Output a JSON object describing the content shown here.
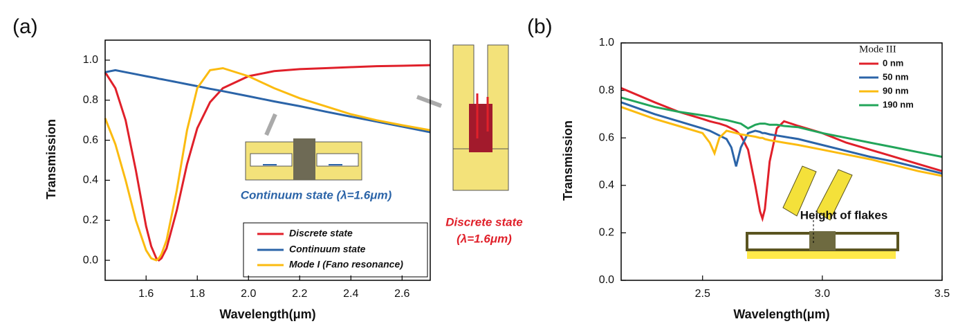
{
  "chart_data": [
    {
      "type": "line",
      "panel_label": "(a)",
      "x_label": "Wavelength(μm)",
      "y_label": "Transmission",
      "xlim": [
        1.44,
        2.71
      ],
      "ylim": [
        -0.1,
        1.1
      ],
      "xticks": [
        1.6,
        1.8,
        {
          "value": 2,
          "label": "2.0"
        },
        2.2,
        2.4,
        2.6
      ],
      "yticks": [
        {
          "value": 0,
          "label": "0.0"
        },
        0.2,
        0.4,
        0.6,
        0.8,
        {
          "value": 1,
          "label": "1.0"
        }
      ],
      "legend": "lower right",
      "x": [
        1.44,
        1.48,
        1.52,
        1.56,
        1.6,
        1.62,
        1.64,
        1.65,
        1.66,
        1.68,
        1.72,
        1.76,
        1.8,
        1.85,
        1.9,
        2.0,
        2.1,
        2.2,
        2.3,
        2.4,
        2.5,
        2.6,
        2.71
      ],
      "series": [
        {
          "name": "Discrete state",
          "color": "#e0202a",
          "values": [
            0.94,
            0.86,
            0.7,
            0.45,
            0.17,
            0.07,
            0.01,
            0.0,
            0.01,
            0.06,
            0.25,
            0.48,
            0.66,
            0.79,
            0.86,
            0.92,
            0.945,
            0.955,
            0.96,
            0.965,
            0.97,
            0.972,
            0.975
          ]
        },
        {
          "name": "Continuum state",
          "color": "#2b64a8",
          "values": [
            0.94,
            0.95,
            0.94,
            0.93,
            0.92,
            0.915,
            0.91,
            0.907,
            0.905,
            0.9,
            0.89,
            0.88,
            0.87,
            0.857,
            0.845,
            0.82,
            0.794,
            0.77,
            0.743,
            0.718,
            0.693,
            0.668,
            0.64
          ]
        },
        {
          "name": "Mode I (Fano resonance)",
          "color": "#fbbb10",
          "values": [
            0.71,
            0.58,
            0.4,
            0.2,
            0.05,
            0.01,
            0.0,
            0.01,
            0.03,
            0.1,
            0.35,
            0.65,
            0.86,
            0.95,
            0.96,
            0.92,
            0.86,
            0.81,
            0.77,
            0.73,
            0.7,
            0.675,
            0.65
          ]
        }
      ],
      "annotations": [
        {
          "text": "Continuum state (λ=1.6μm)",
          "color": "#2b64a8"
        },
        {
          "text": "Discrete state",
          "color": "#e0202a"
        },
        {
          "text": "(λ=1.6μm)",
          "color": "#e0202a"
        }
      ]
    },
    {
      "type": "line",
      "panel_label": "(b)",
      "x_label": "Wavelength(μm)",
      "y_label": "Transmission",
      "xlim": [
        2.16,
        3.5
      ],
      "ylim": [
        0,
        1
      ],
      "xticks": [
        2.5,
        {
          "value": 3,
          "label": "3.0"
        },
        3.5
      ],
      "yticks": [
        {
          "value": 0,
          "label": "0.0"
        },
        0.2,
        0.4,
        0.6,
        0.8,
        {
          "value": 1,
          "label": "1.0"
        }
      ],
      "legend": "upper right",
      "legend_title": "Mode III",
      "x": [
        2.16,
        2.3,
        2.4,
        2.5,
        2.53,
        2.55,
        2.57,
        2.6,
        2.62,
        2.64,
        2.66,
        2.69,
        2.72,
        2.74,
        2.75,
        2.76,
        2.78,
        2.81,
        2.84,
        2.9,
        3.0,
        3.1,
        3.2,
        3.3,
        3.4,
        3.5
      ],
      "series": [
        {
          "name": "0 nm",
          "color": "#e0202a",
          "values": [
            0.81,
            0.75,
            0.71,
            0.68,
            0.67,
            0.665,
            0.66,
            0.65,
            0.64,
            0.63,
            0.61,
            0.55,
            0.4,
            0.29,
            0.26,
            0.3,
            0.5,
            0.64,
            0.67,
            0.65,
            0.62,
            0.58,
            0.55,
            0.52,
            0.49,
            0.46
          ]
        },
        {
          "name": "50 nm",
          "color": "#2b64a8",
          "values": [
            0.75,
            0.7,
            0.67,
            0.64,
            0.63,
            0.62,
            0.61,
            0.595,
            0.56,
            0.48,
            0.56,
            0.62,
            0.63,
            0.625,
            0.62,
            0.62,
            0.615,
            0.61,
            0.605,
            0.595,
            0.57,
            0.545,
            0.52,
            0.5,
            0.475,
            0.45
          ]
        },
        {
          "name": "90 nm",
          "color": "#fbbb10",
          "values": [
            0.73,
            0.68,
            0.65,
            0.62,
            0.58,
            0.535,
            0.6,
            0.63,
            0.625,
            0.62,
            0.615,
            0.61,
            0.605,
            0.6,
            0.6,
            0.595,
            0.59,
            0.585,
            0.58,
            0.57,
            0.55,
            0.53,
            0.51,
            0.485,
            0.46,
            0.44
          ]
        },
        {
          "name": "190 nm",
          "color": "#22a55a",
          "values": [
            0.77,
            0.73,
            0.71,
            0.695,
            0.69,
            0.685,
            0.68,
            0.675,
            0.67,
            0.665,
            0.66,
            0.64,
            0.655,
            0.66,
            0.66,
            0.66,
            0.655,
            0.655,
            0.65,
            0.645,
            0.62,
            0.6,
            0.58,
            0.56,
            0.54,
            0.52
          ]
        }
      ],
      "annotations": [
        {
          "text": "Height of flakes",
          "color": "#111111"
        }
      ]
    }
  ]
}
